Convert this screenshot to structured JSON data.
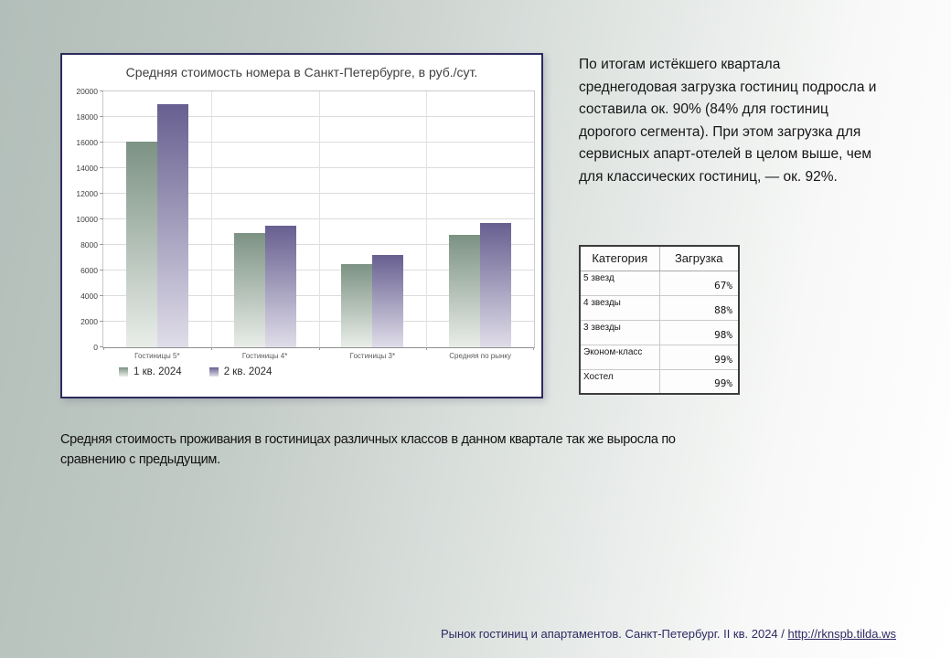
{
  "chart_data": {
    "type": "bar",
    "title": "Средняя стоимость номера в Санкт-Петербурге, в руб./сут.",
    "categories": [
      "Гостиницы 5*",
      "Гостиницы 4*",
      "Гостиницы 3*",
      "Средняя по рынку"
    ],
    "series": [
      {
        "name": "1 кв. 2024",
        "values": [
          16100,
          8900,
          6500,
          8800
        ],
        "color_top": "#7c9283",
        "color_bottom": "#e9ede9"
      },
      {
        "name": "2 кв. 2024",
        "values": [
          19000,
          9500,
          7200,
          9700
        ],
        "color_top": "#675f90",
        "color_bottom": "#e0dde9"
      }
    ],
    "xlabel": "",
    "ylabel": "",
    "ylim": [
      0,
      20000
    ],
    "ytick_step": 2000,
    "grid": true,
    "legend_position": "bottom-left"
  },
  "commentary": "По итогам истёкшего квартала среднегодовая загрузка гостиниц подросла и составила ок. 90% (84% для гостиниц дорогого сегмента). При этом загрузка для сервисных апарт-отелей в целом выше, чем для классических гостиниц, — ок. 92%.",
  "table": {
    "headers": [
      "Категория",
      "Загрузка"
    ],
    "rows": [
      [
        "5 звезд",
        "67%"
      ],
      [
        "4 звезды",
        "88%"
      ],
      [
        "3 звезды",
        "98%"
      ],
      [
        "Эконом-класс",
        "99%"
      ],
      [
        "Хостел",
        "99%"
      ]
    ]
  },
  "caption": "Средняя стоимость проживания в гостиницах различных классов в данном квартале так же выросла по сравнению с предыдущим.",
  "footer": {
    "text": "Рынок гостиниц и апартаментов. Санкт-Петербург. II кв. 2024 / ",
    "link": "http://rknspb.tilda.ws"
  },
  "colors": {
    "page_bg_left": "#b2beb9",
    "page_bg_right": "#ffffff",
    "chart_border": "#2d2a5e",
    "footer_text": "#2e2a63"
  }
}
